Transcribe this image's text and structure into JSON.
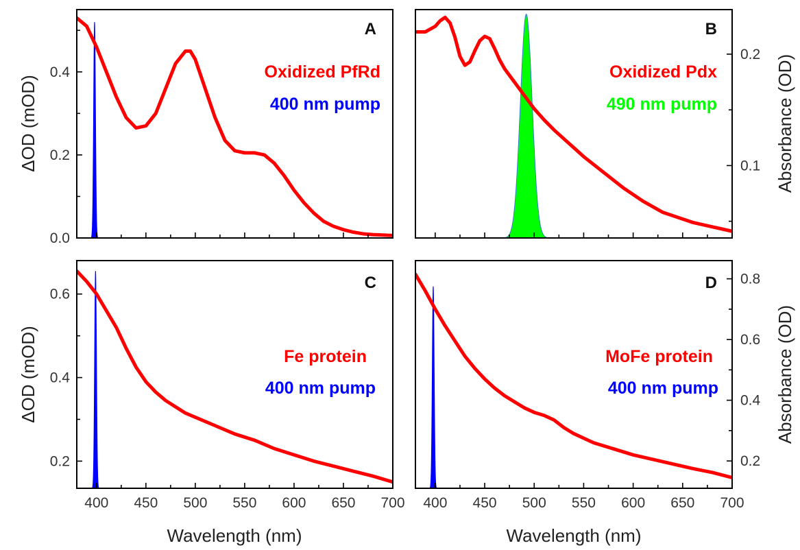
{
  "colors": {
    "spectrum": "#ff0000",
    "pump_blue": "#0000ff",
    "pump_green": "#00ff00",
    "axis": "#000000"
  },
  "labels": {
    "xlabel": "Wavelength (nm)",
    "ylabel_left": "ΔOD (mOD)",
    "ylabel_right": "Absorbance (OD)"
  },
  "chart_data": [
    {
      "panel": "A",
      "type": "line",
      "xlim": [
        380,
        700
      ],
      "ylim": [
        0.0,
        0.55
      ],
      "x_ticks": [
        400,
        450,
        500,
        550,
        600,
        650,
        700
      ],
      "y_ticks": [
        0.0,
        0.2,
        0.4
      ],
      "y_tick_labels": [
        "0.0",
        "0.2",
        "0.4"
      ],
      "y_axis_side": "left",
      "annotations": [
        {
          "text": "Oxidized PfRd",
          "color": "#ff0000"
        },
        {
          "text": "400 nm pump",
          "color": "#0000ff"
        }
      ],
      "series": [
        {
          "color": "#ff0000",
          "x": [
            380,
            390,
            400,
            410,
            420,
            430,
            440,
            450,
            460,
            470,
            480,
            490,
            495,
            500,
            510,
            520,
            530,
            540,
            550,
            560,
            570,
            580,
            590,
            600,
            610,
            620,
            630,
            640,
            650,
            660,
            670,
            680,
            690,
            700
          ],
          "y": [
            0.53,
            0.51,
            0.46,
            0.4,
            0.34,
            0.29,
            0.265,
            0.27,
            0.3,
            0.36,
            0.42,
            0.45,
            0.45,
            0.43,
            0.36,
            0.29,
            0.235,
            0.21,
            0.205,
            0.205,
            0.2,
            0.18,
            0.15,
            0.115,
            0.085,
            0.06,
            0.04,
            0.028,
            0.02,
            0.014,
            0.01,
            0.008,
            0.007,
            0.006
          ]
        }
      ],
      "pump": {
        "center": 398,
        "fwhm": 2.2,
        "peak": 0.52,
        "color": "#0000ff"
      }
    },
    {
      "panel": "B",
      "type": "line",
      "xlim": [
        380,
        700
      ],
      "ylim": [
        0.035,
        0.24
      ],
      "x_ticks": [
        400,
        450,
        500,
        550,
        600,
        650,
        700
      ],
      "y_ticks": [
        0.1,
        0.2
      ],
      "y_tick_labels": [
        "0.1",
        "0.2"
      ],
      "y_axis_side": "right",
      "annotations": [
        {
          "text": "Oxidized Pdx",
          "color": "#ff0000"
        },
        {
          "text": "490 nm pump",
          "color": "#00ff00"
        }
      ],
      "series": [
        {
          "color": "#ff0000",
          "x": [
            380,
            390,
            400,
            405,
            410,
            415,
            420,
            425,
            430,
            435,
            440,
            445,
            450,
            455,
            460,
            465,
            470,
            480,
            490,
            500,
            510,
            520,
            530,
            540,
            550,
            560,
            570,
            580,
            590,
            600,
            610,
            620,
            630,
            640,
            650,
            660,
            670,
            680,
            690,
            700
          ],
          "y": [
            0.22,
            0.22,
            0.225,
            0.23,
            0.233,
            0.228,
            0.215,
            0.198,
            0.19,
            0.193,
            0.203,
            0.212,
            0.216,
            0.214,
            0.205,
            0.195,
            0.187,
            0.175,
            0.163,
            0.151,
            0.141,
            0.132,
            0.124,
            0.116,
            0.108,
            0.101,
            0.094,
            0.087,
            0.08,
            0.074,
            0.068,
            0.063,
            0.058,
            0.055,
            0.052,
            0.049,
            0.047,
            0.045,
            0.043,
            0.041
          ]
        }
      ],
      "pump": {
        "center": 492,
        "fwhm": 14,
        "peak": 0.236,
        "color": "#00ff00",
        "base": 0.035
      }
    },
    {
      "panel": "C",
      "type": "line",
      "xlim": [
        380,
        700
      ],
      "ylim": [
        0.135,
        0.68
      ],
      "x_ticks": [
        400,
        450,
        500,
        550,
        600,
        650,
        700
      ],
      "y_ticks": [
        0.2,
        0.4,
        0.6
      ],
      "y_tick_labels": [
        "0.2",
        "0.4",
        "0.6"
      ],
      "y_axis_side": "left",
      "annotations": [
        {
          "text": "Fe protein",
          "color": "#ff0000"
        },
        {
          "text": "400 nm pump",
          "color": "#0000ff"
        }
      ],
      "series": [
        {
          "color": "#ff0000",
          "x": [
            380,
            390,
            400,
            410,
            420,
            430,
            440,
            450,
            460,
            470,
            480,
            490,
            500,
            520,
            540,
            560,
            580,
            600,
            620,
            640,
            660,
            680,
            700
          ],
          "y": [
            0.655,
            0.63,
            0.6,
            0.56,
            0.52,
            0.47,
            0.425,
            0.39,
            0.365,
            0.345,
            0.33,
            0.315,
            0.305,
            0.285,
            0.265,
            0.25,
            0.23,
            0.215,
            0.2,
            0.188,
            0.176,
            0.164,
            0.15
          ]
        }
      ],
      "pump": {
        "center": 399,
        "fwhm": 2.2,
        "peak": 0.655,
        "color": "#0000ff"
      }
    },
    {
      "panel": "D",
      "type": "line",
      "xlim": [
        380,
        700
      ],
      "ylim": [
        0.11,
        0.86
      ],
      "x_ticks": [
        400,
        450,
        500,
        550,
        600,
        650,
        700
      ],
      "y_ticks": [
        0.2,
        0.4,
        0.6,
        0.8
      ],
      "y_tick_labels": [
        "0.2",
        "0.4",
        "0.6",
        "0.8"
      ],
      "y_axis_side": "right",
      "annotations": [
        {
          "text": "MoFe protein",
          "color": "#ff0000"
        },
        {
          "text": "400 nm pump",
          "color": "#0000ff"
        }
      ],
      "series": [
        {
          "color": "#ff0000",
          "x": [
            380,
            390,
            400,
            410,
            420,
            430,
            440,
            450,
            460,
            470,
            480,
            490,
            500,
            510,
            520,
            530,
            540,
            560,
            580,
            600,
            620,
            640,
            660,
            680,
            700
          ],
          "y": [
            0.815,
            0.76,
            0.7,
            0.645,
            0.595,
            0.545,
            0.505,
            0.47,
            0.44,
            0.415,
            0.395,
            0.375,
            0.36,
            0.35,
            0.335,
            0.31,
            0.29,
            0.26,
            0.24,
            0.22,
            0.205,
            0.19,
            0.175,
            0.162,
            0.145
          ]
        }
      ],
      "pump": {
        "center": 398,
        "fwhm": 2.2,
        "peak": 0.775,
        "color": "#0000ff"
      }
    }
  ]
}
